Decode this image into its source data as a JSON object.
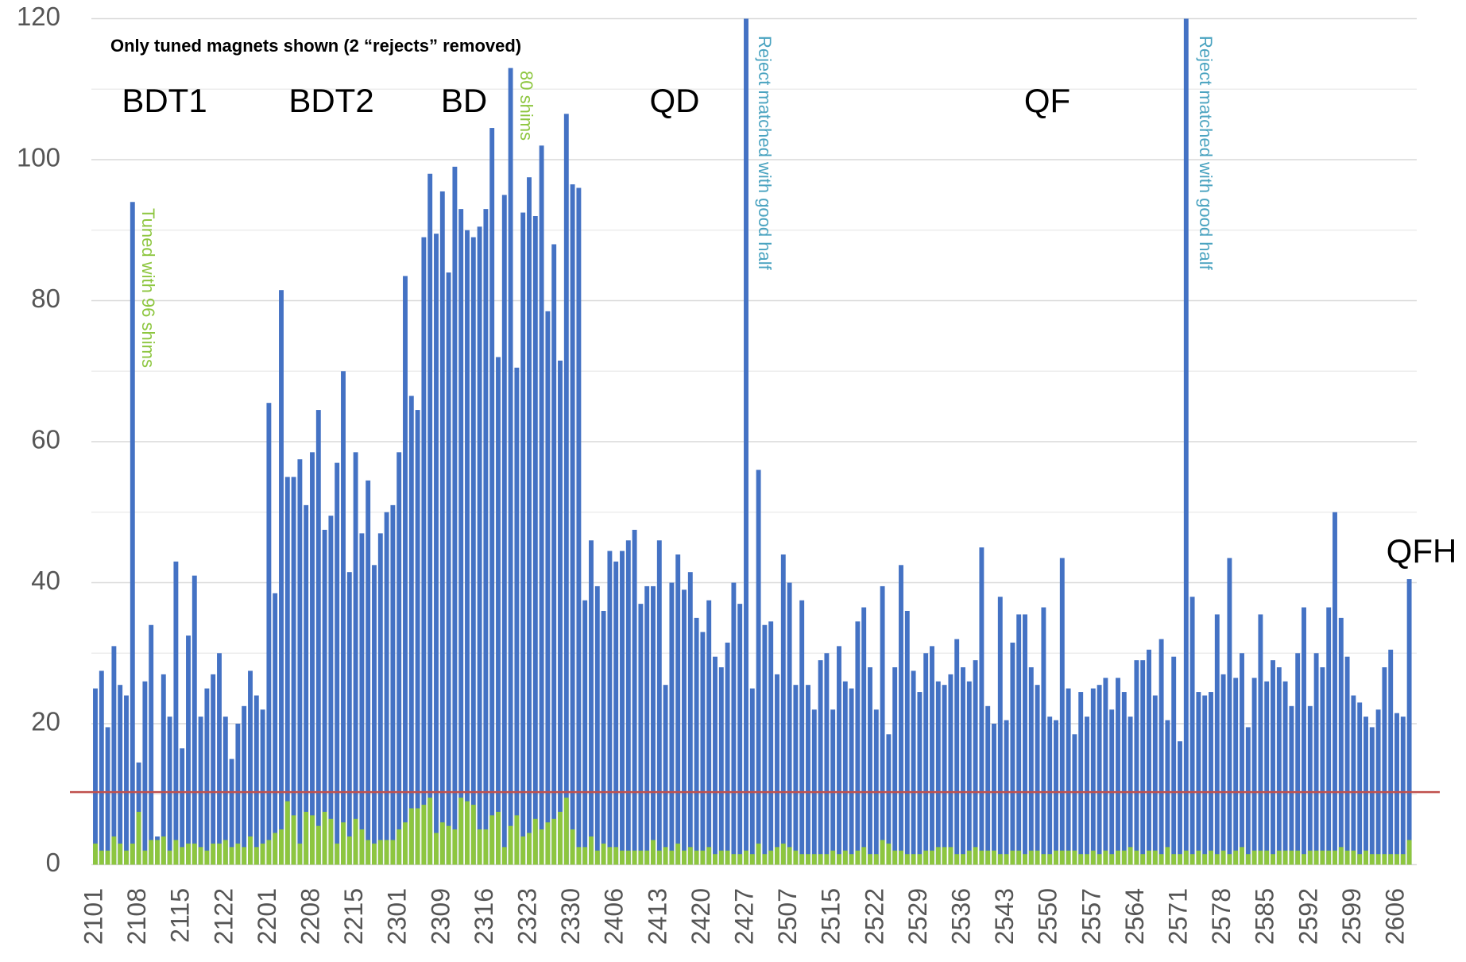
{
  "chart_data": {
    "type": "bar",
    "categories": [
      "2101",
      null,
      null,
      null,
      null,
      null,
      null,
      "2108",
      null,
      null,
      null,
      null,
      null,
      null,
      "2115",
      null,
      null,
      null,
      null,
      null,
      null,
      "2122",
      null,
      null,
      null,
      null,
      null,
      null,
      "2201",
      null,
      null,
      null,
      null,
      null,
      null,
      "2208",
      null,
      null,
      null,
      null,
      null,
      null,
      "2215",
      null,
      null,
      null,
      null,
      null,
      null,
      "2301",
      null,
      null,
      null,
      null,
      null,
      null,
      "2309",
      null,
      null,
      null,
      null,
      null,
      null,
      "2316",
      null,
      null,
      null,
      null,
      null,
      null,
      "2323",
      null,
      null,
      null,
      null,
      null,
      null,
      "2330",
      null,
      null,
      null,
      null,
      null,
      null,
      "2406",
      null,
      null,
      null,
      null,
      null,
      null,
      "2413",
      null,
      null,
      null,
      null,
      null,
      null,
      "2420",
      null,
      null,
      null,
      null,
      null,
      null,
      "2427",
      null,
      null,
      null,
      null,
      null,
      null,
      "2507",
      null,
      null,
      null,
      null,
      null,
      null,
      "2515",
      null,
      null,
      null,
      null,
      null,
      null,
      "2522",
      null,
      null,
      null,
      null,
      null,
      null,
      "2529",
      null,
      null,
      null,
      null,
      null,
      null,
      "2536",
      null,
      null,
      null,
      null,
      null,
      null,
      "2543",
      null,
      null,
      null,
      null,
      null,
      null,
      "2550",
      null,
      null,
      null,
      null,
      null,
      null,
      "2557",
      null,
      null,
      null,
      null,
      null,
      null,
      "2564",
      null,
      null,
      null,
      null,
      null,
      null,
      "2571",
      null,
      null,
      null,
      null,
      null,
      null,
      "2578",
      null,
      null,
      null,
      null,
      null,
      null,
      "2585",
      null,
      null,
      null,
      null,
      null,
      null,
      "2592",
      null,
      null,
      null,
      null,
      null,
      null,
      "2599",
      null,
      null,
      null,
      null,
      null,
      null,
      "2606",
      null,
      null
    ],
    "series": [
      {
        "color": "#4472c4",
        "values": [
          25,
          27.5,
          19.5,
          31,
          25.5,
          24,
          94,
          14.5,
          26,
          34,
          4,
          27,
          21,
          43,
          16.5,
          32.5,
          41,
          21,
          25,
          27,
          30,
          21,
          15,
          20,
          22.5,
          27.5,
          24,
          22,
          65.5,
          38.5,
          81.5,
          55,
          55,
          57.5,
          51,
          58.5,
          64.5,
          47.5,
          49.5,
          57,
          70,
          41.5,
          58.5,
          47,
          54.5,
          42.5,
          47,
          50,
          51,
          58.5,
          83.5,
          66.5,
          64.5,
          89,
          98,
          89.5,
          95.5,
          84,
          99,
          93,
          90,
          89,
          90.5,
          93,
          104.5,
          72,
          95,
          113,
          70.5,
          92.5,
          97.5,
          92,
          102,
          78.5,
          88,
          71.5,
          106.5,
          96.5,
          96,
          37.5,
          46,
          39.5,
          36,
          44.5,
          43,
          44.5,
          46,
          47.5,
          37,
          39.5,
          39.5,
          46,
          25.5,
          40,
          44,
          39,
          41.5,
          35,
          33,
          37.5,
          29.5,
          28,
          31.5,
          40,
          37,
          120,
          25,
          56,
          34,
          34.5,
          27,
          44,
          40,
          25.5,
          37.5,
          25.5,
          22,
          29,
          30,
          22,
          31,
          26,
          25,
          34.5,
          36.5,
          28,
          22,
          39.5,
          18.5,
          28,
          42.5,
          36,
          27.5,
          24.5,
          30,
          31,
          26,
          25.5,
          27,
          32,
          28,
          26,
          29,
          45,
          22.5,
          20,
          38,
          20.5,
          31.5,
          35.5,
          35.5,
          28,
          25.5,
          36.5,
          21,
          20.5,
          43.5,
          25,
          18.5,
          24.5,
          21,
          25,
          25.5,
          26.5,
          22,
          26.5,
          24.5,
          21,
          29,
          29,
          30.5,
          24,
          32,
          20.5,
          29.5,
          17.5,
          120,
          38,
          24.5,
          24,
          24.5,
          35.5,
          27,
          43.5,
          26.5,
          30,
          19.5,
          26.5,
          35.5,
          26,
          29,
          28,
          26,
          22.5,
          30,
          36.5,
          22.5,
          30,
          28,
          36.5,
          50,
          35,
          29.5,
          24,
          23,
          21,
          19.5,
          22,
          28,
          30.5,
          21.5,
          21,
          40.5
        ]
      },
      {
        "color": "#8dc63f",
        "values": [
          3,
          2,
          2,
          4,
          3,
          2,
          3,
          7.5,
          2,
          3.5,
          3.5,
          4,
          2,
          3.5,
          2.5,
          3,
          3,
          2.5,
          2,
          3,
          3,
          3.5,
          2.5,
          3,
          2.5,
          4,
          2.5,
          3,
          3.5,
          4.5,
          5,
          9,
          7,
          3,
          7.5,
          7,
          5.5,
          7.5,
          6.5,
          3,
          6,
          4,
          6.5,
          5,
          3.5,
          3,
          3.5,
          3.5,
          3.5,
          5,
          6,
          8,
          8,
          8.5,
          9.5,
          4.5,
          6,
          5.5,
          5,
          9.5,
          9,
          8.5,
          5,
          5,
          7,
          7.5,
          2.5,
          5.5,
          7,
          4,
          4.5,
          6.5,
          5,
          6,
          6.5,
          7.5,
          9.5,
          5,
          2.5,
          2.5,
          4,
          2,
          3,
          2.5,
          2.5,
          2,
          2,
          2,
          2,
          2,
          3.5,
          2,
          2.5,
          2,
          3,
          2,
          2.5,
          2,
          2,
          2.5,
          1.5,
          2,
          2,
          1.5,
          1.5,
          2,
          1.5,
          3,
          1.5,
          2,
          2.5,
          3,
          2.5,
          2,
          1.5,
          1.5,
          1.5,
          1.5,
          1.5,
          2,
          1.5,
          2,
          1.5,
          2,
          2.5,
          1.5,
          1.5,
          3.5,
          3,
          2,
          2,
          1.5,
          1.5,
          1.5,
          2,
          2,
          2.5,
          2.5,
          2.5,
          1.5,
          1.5,
          2,
          2.5,
          2,
          2,
          2,
          1.5,
          1.5,
          2,
          2,
          1.5,
          2,
          2,
          1.5,
          1.5,
          2,
          2,
          2,
          2,
          1.5,
          1.5,
          2,
          1.5,
          2,
          1.5,
          2,
          2,
          2.5,
          2,
          1.5,
          2,
          2,
          1.5,
          2.5,
          1.5,
          1.5,
          2,
          1.5,
          2,
          1.5,
          2,
          1.5,
          2,
          1.5,
          2,
          2.5,
          1.5,
          2,
          2,
          2,
          1.5,
          2,
          2,
          2,
          2,
          1.5,
          2,
          2,
          2,
          2,
          2,
          2.5,
          2,
          2,
          1.5,
          2,
          1.5,
          1.5,
          1.5,
          1.5,
          1.5,
          1.5,
          3.5
        ]
      }
    ],
    "ylim": [
      0,
      120
    ],
    "yticks": [
      0,
      20,
      40,
      60,
      80,
      100,
      120
    ],
    "minor_yticks": [
      10,
      30,
      50,
      70,
      90,
      110
    ],
    "grid": true,
    "reference_line": {
      "value": 10.3,
      "color": "#c0504d"
    },
    "annotations": [
      "Only tuned magnets shown (2 “rejects” removed)",
      "BDT1",
      "BDT2",
      "BD",
      "QD",
      "QF",
      "QFH",
      "Tuned with 96 shims",
      "80 shims",
      "Reject matched with good half",
      "Reject matched with good half"
    ]
  }
}
